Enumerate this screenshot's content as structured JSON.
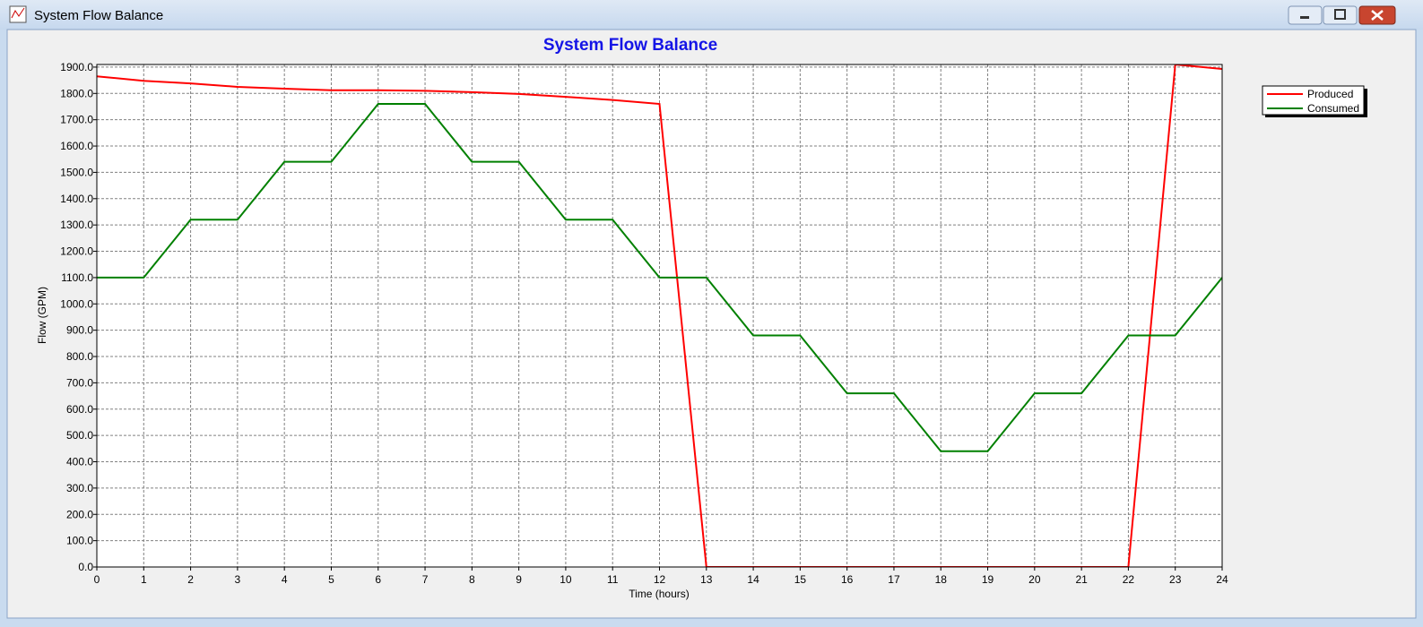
{
  "window": {
    "title": "System Flow Balance"
  },
  "chart_data": {
    "type": "line",
    "title": "System Flow Balance",
    "x_label": "Time (hours)",
    "y_label": "Flow (GPM)",
    "x": [
      0,
      1,
      2,
      3,
      4,
      5,
      6,
      7,
      8,
      9,
      10,
      11,
      12,
      13,
      14,
      15,
      16,
      17,
      18,
      19,
      20,
      21,
      22,
      23,
      24
    ],
    "series": [
      {
        "name": "Produced",
        "color": "#ff0000",
        "values": [
          1865,
          1848,
          1838,
          1825,
          1818,
          1812,
          1812,
          1810,
          1805,
          1798,
          1787,
          1775,
          1760,
          0,
          0,
          0,
          0,
          0,
          0,
          0,
          0,
          0,
          0,
          1910,
          1893
        ]
      },
      {
        "name": "Consumed",
        "color": "#008000",
        "values": [
          1100,
          1100,
          1320,
          1320,
          1540,
          1540,
          1760,
          1760,
          1540,
          1540,
          1320,
          1320,
          1100,
          1100,
          880,
          880,
          660,
          660,
          440,
          440,
          660,
          660,
          880,
          880,
          1100
        ]
      }
    ],
    "xlim": [
      0,
      24
    ],
    "ylim": [
      0,
      1910
    ],
    "xticks": [
      0,
      1,
      2,
      3,
      4,
      5,
      6,
      7,
      8,
      9,
      10,
      11,
      12,
      13,
      14,
      15,
      16,
      17,
      18,
      19,
      20,
      21,
      22,
      23,
      24
    ],
    "yticks": [
      {
        "value": 0,
        "label": "0.0"
      },
      {
        "value": 100,
        "label": "100.0"
      },
      {
        "value": 200,
        "label": "200.0"
      },
      {
        "value": 300,
        "label": "300.0"
      },
      {
        "value": 400,
        "label": "400.0"
      },
      {
        "value": 500,
        "label": "500.0"
      },
      {
        "value": 600,
        "label": "600.0"
      },
      {
        "value": 700,
        "label": "700.0"
      },
      {
        "value": 800,
        "label": "800.0"
      },
      {
        "value": 900,
        "label": "900.0"
      },
      {
        "value": 1000,
        "label": "1000.0"
      },
      {
        "value": 1100,
        "label": "1100.0"
      },
      {
        "value": 1200,
        "label": "1200.0"
      },
      {
        "value": 1300,
        "label": "1300.0"
      },
      {
        "value": 1400,
        "label": "1400.0"
      },
      {
        "value": 1500,
        "label": "1500.0"
      },
      {
        "value": 1600,
        "label": "1600.0"
      },
      {
        "value": 1700,
        "label": "1700.0"
      },
      {
        "value": 1800,
        "label": "1800.0"
      },
      {
        "value": 1900,
        "label": "1900.0"
      }
    ],
    "grid": true
  }
}
